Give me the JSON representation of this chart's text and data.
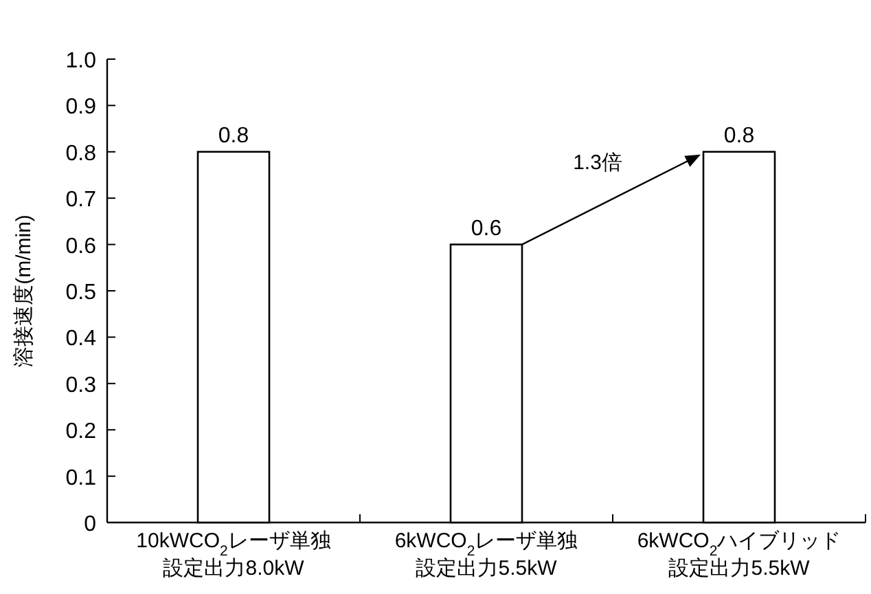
{
  "chart_data": {
    "type": "bar",
    "ylabel": "溶接速度(m/min)",
    "categories": [
      "10kWCO$_{2}$レーザ単独設定出力8.0kW",
      "6kWCO$_{2}$レーザ単独設定出力5.5kW",
      "6kWCO$_{2}$ハイブリッド設定出力5.5kW"
    ],
    "values": [
      0.8,
      0.6,
      0.8
    ],
    "color": "#ffffff",
    "data_labels": true,
    "ylim": [
      0,
      1
    ],
    "yticks": [
      0,
      0.1,
      0.2,
      0.3,
      0.4,
      0.5,
      0.6,
      0.7,
      0.8,
      0.9,
      {
        "value": 1,
        "label": "1.0"
      }
    ],
    "annotations": [
      "1.3倍"
    ],
    "grid": false
  }
}
